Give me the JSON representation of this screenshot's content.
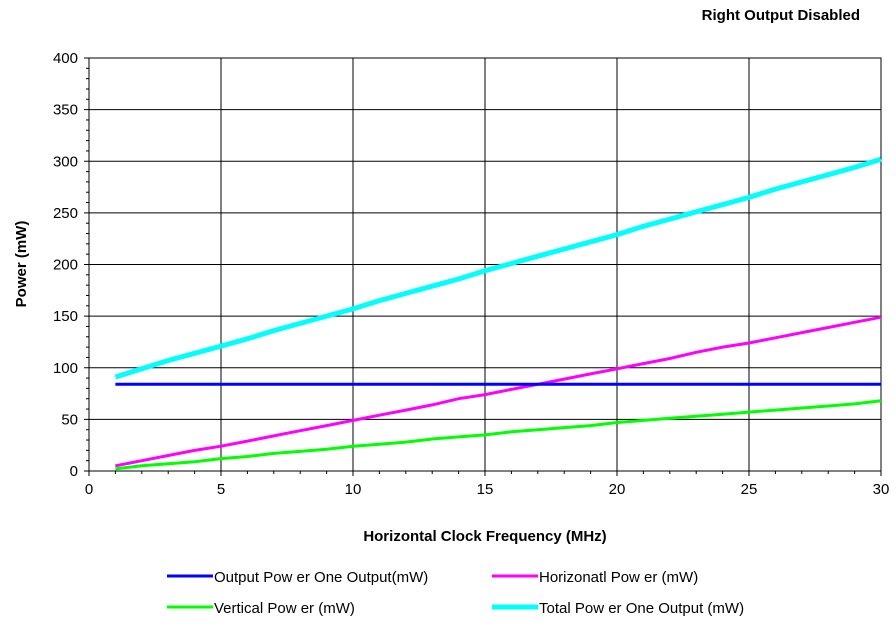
{
  "chart_data": {
    "type": "line",
    "title": "Right Output Disabled",
    "xlabel": "Horizontal Clock Frequency (MHz)",
    "ylabel": "Power (mW)",
    "xlim": [
      0,
      30
    ],
    "ylim": [
      0,
      400
    ],
    "xticks": [
      0,
      5,
      10,
      15,
      20,
      25,
      30
    ],
    "yticks": [
      0,
      50,
      100,
      150,
      200,
      250,
      300,
      350,
      400
    ],
    "grid": true,
    "legend_position": "bottom",
    "series": [
      {
        "name": "Output Pow er One Output(mW)",
        "color": "#0000ff",
        "x": [
          1,
          30
        ],
        "y": [
          84,
          84
        ]
      },
      {
        "name": "Horizonatl Pow er (mW)",
        "color": "#ff00ff",
        "x": [
          1,
          2,
          3,
          4,
          5,
          6,
          7,
          8,
          9,
          10,
          11,
          12,
          13,
          14,
          15,
          16,
          17,
          18,
          19,
          20,
          21,
          22,
          23,
          24,
          25,
          26,
          27,
          28,
          29,
          30
        ],
        "y": [
          5,
          10,
          15,
          20,
          24,
          29,
          34,
          39,
          44,
          49,
          54,
          59,
          64,
          70,
          74,
          79,
          84,
          89,
          94,
          99,
          104,
          109,
          115,
          120,
          124,
          129,
          134,
          139,
          144,
          149
        ]
      },
      {
        "name": "Vertical Pow er (mW)",
        "color": "#00ff00",
        "x": [
          1,
          2,
          3,
          4,
          5,
          6,
          7,
          8,
          9,
          10,
          11,
          12,
          13,
          14,
          15,
          16,
          17,
          18,
          19,
          20,
          21,
          22,
          23,
          24,
          25,
          26,
          27,
          28,
          29,
          30
        ],
        "y": [
          2,
          5,
          7,
          9,
          12,
          14,
          17,
          19,
          21,
          24,
          26,
          28,
          31,
          33,
          35,
          38,
          40,
          42,
          44,
          47,
          49,
          51,
          53,
          55,
          57,
          59,
          61,
          63,
          65,
          68
        ]
      },
      {
        "name": "Total Pow er One Output (mW)",
        "color": "#00ffff",
        "x": [
          1,
          2,
          3,
          4,
          5,
          6,
          7,
          8,
          9,
          10,
          11,
          12,
          13,
          14,
          15,
          16,
          17,
          18,
          19,
          20,
          21,
          22,
          23,
          24,
          25,
          26,
          27,
          28,
          29,
          30
        ],
        "y": [
          91,
          99,
          107,
          114,
          121,
          128,
          136,
          143,
          150,
          157,
          165,
          172,
          179,
          186,
          194,
          201,
          208,
          215,
          222,
          229,
          237,
          244,
          251,
          258,
          265,
          273,
          280,
          287,
          294,
          302
        ]
      }
    ]
  }
}
